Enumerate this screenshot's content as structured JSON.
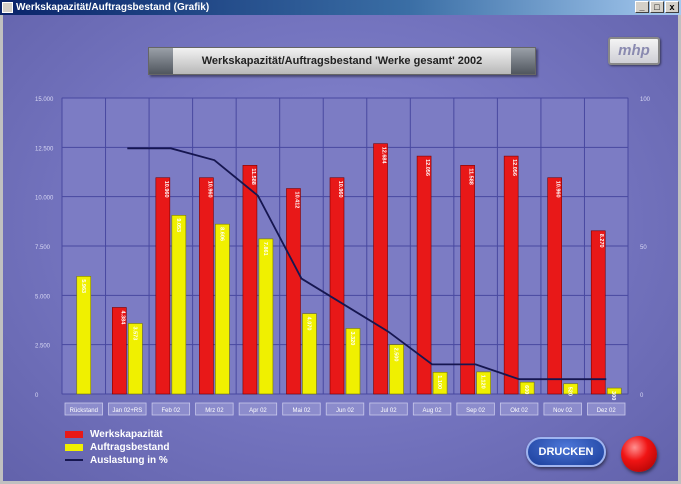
{
  "window": {
    "title": "Werkskapazität/Auftragsbestand (Grafik)",
    "controls": {
      "minimize": "_",
      "maximize": "□",
      "close": "x"
    }
  },
  "header": {
    "chart_title": "Werkskapazität/Auftragsbestand  'Werke gesamt'  2002",
    "logo_text": "mhp"
  },
  "legend": {
    "items": [
      {
        "label": "Werkskapazität",
        "color": "#e81818"
      },
      {
        "label": "Auftragsbestand",
        "color": "#f0f000"
      },
      {
        "label": "Auslastung in %",
        "color": "#161650"
      }
    ]
  },
  "buttons": {
    "print": "DRUCKEN"
  },
  "chart_data": {
    "type": "bar",
    "title": "Werkskapazität/Auftragsbestand  'Werke gesamt'  2002",
    "categories": [
      "Rückstand",
      "Jan 02+RS",
      "Feb 02",
      "Mrz 02",
      "Apr 02",
      "Mai 02",
      "Jun 02",
      "Jul 02",
      "Aug 02",
      "Sep 02",
      "Okt 02",
      "Nov 02",
      "Dez 02"
    ],
    "y_left": {
      "ticks": [
        "0",
        "2.500",
        "5.000",
        "7.500",
        "10.000",
        "12.500",
        "15.000"
      ],
      "ylim": [
        0,
        15000
      ]
    },
    "y_right": {
      "ticks": [
        "0",
        "50",
        "100"
      ],
      "ylim": [
        0,
        100
      ]
    },
    "series": [
      {
        "name": "Werkskapazität",
        "color": "#e81818",
        "values": [
          null,
          4384,
          10960,
          10960,
          11588,
          10412,
          10960,
          12684,
          12056,
          11588,
          12056,
          10960,
          8270
        ],
        "labels": [
          "",
          "4.384",
          "10.960",
          "10.960",
          "11.588",
          "10.412",
          "10.960",
          "12.684",
          "12.056",
          "11.588",
          "12.056",
          "10.960",
          "8.270"
        ]
      },
      {
        "name": "Auftragsbestand",
        "color": "#f0f000",
        "values": [
          5963,
          3573,
          9053,
          8606,
          7861,
          4070,
          3320,
          2500,
          1100,
          1120,
          600,
          520,
          300
        ],
        "labels": [
          "5.963",
          "3.573",
          "9.053",
          "8.606",
          "7.861",
          "4.070",
          "3.320",
          "2.500",
          "1.100",
          "1.120",
          "600",
          "520",
          "300"
        ]
      },
      {
        "name": "Auslastung in %",
        "type": "line",
        "color": "#161650",
        "axis": "right",
        "values": [
          null,
          83,
          83,
          79,
          67,
          39,
          30,
          21,
          10,
          10,
          5,
          5,
          5
        ]
      }
    ],
    "legend_position": "bottom-left",
    "grid": true
  }
}
